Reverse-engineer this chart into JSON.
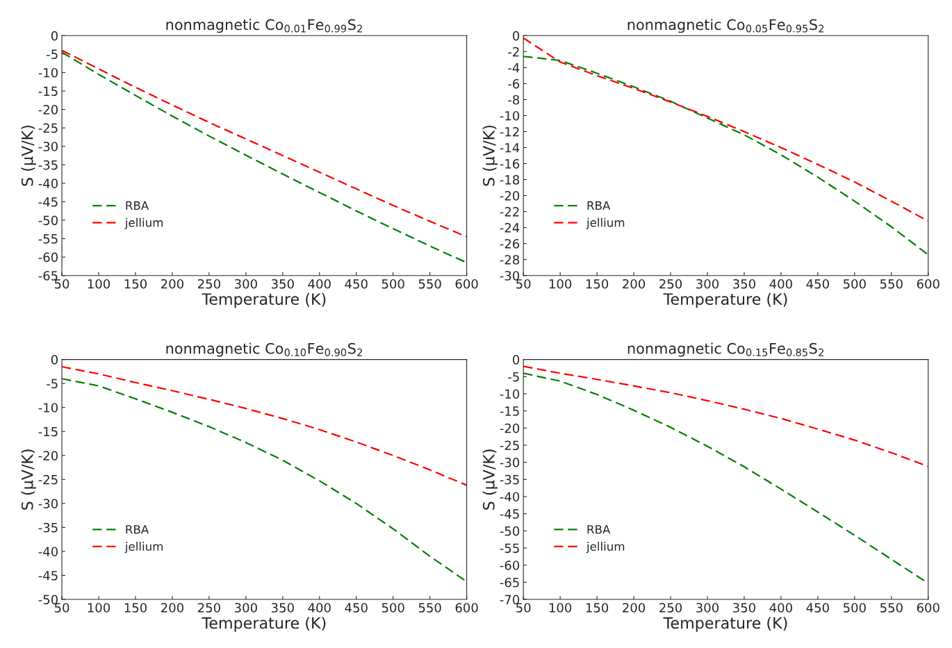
{
  "chart_data": [
    {
      "type": "line",
      "title": "nonmagnetic Co$_{0.01}$Fe$_{0.99}$S$_{2}$",
      "xlabel": "Temperature (K)",
      "ylabel": "S (µV/K)",
      "line_style": "dashed",
      "legend": "bottom left",
      "grid": false,
      "xlim": [
        50,
        600
      ],
      "xticks": [
        50,
        100,
        150,
        200,
        250,
        300,
        350,
        400,
        450,
        500,
        550,
        600
      ],
      "ylim": [
        -65,
        0
      ],
      "yticks": [
        -65,
        -60,
        -55,
        -50,
        -45,
        -40,
        -35,
        -30,
        -25,
        -20,
        -15,
        -10,
        -5,
        0
      ],
      "x": [
        50,
        100,
        150,
        200,
        250,
        300,
        350,
        400,
        450,
        500,
        550,
        600
      ],
      "series": [
        {
          "name": "RBA",
          "color": "#008000",
          "values": [
            -4.5,
            -10.5,
            -16.2,
            -21.8,
            -27.2,
            -32.4,
            -37.5,
            -42.5,
            -47.5,
            -52.3,
            -57,
            -61.5
          ]
        },
        {
          "name": "jellium",
          "color": "#ff0000",
          "values": [
            -4,
            -9,
            -14,
            -18.8,
            -23.5,
            -28,
            -32.5,
            -37,
            -41.5,
            -46,
            -50.3,
            -54.5
          ]
        }
      ]
    },
    {
      "type": "line",
      "title": "nonmagnetic Co$_{0.05}$Fe$_{0.95}$S$_{2}$",
      "xlabel": "Temperature (K)",
      "ylabel": "S (µV/K)",
      "line_style": "dashed",
      "legend": "bottom left",
      "grid": false,
      "xlim": [
        50,
        600
      ],
      "xticks": [
        50,
        100,
        150,
        200,
        250,
        300,
        350,
        400,
        450,
        500,
        550,
        600
      ],
      "ylim": [
        -30,
        0
      ],
      "yticks": [
        -30,
        -28,
        -26,
        -24,
        -22,
        -20,
        -18,
        -16,
        -14,
        -12,
        -10,
        -8,
        -6,
        -4,
        -2,
        0
      ],
      "x": [
        50,
        100,
        150,
        200,
        250,
        300,
        350,
        400,
        450,
        500,
        550,
        600
      ],
      "series": [
        {
          "name": "RBA",
          "color": "#008000",
          "values": [
            -2.6,
            -3.1,
            -4.7,
            -6.4,
            -8.2,
            -10.3,
            -12.4,
            -14.9,
            -17.7,
            -20.7,
            -23.9,
            -27.4
          ]
        },
        {
          "name": "jellium",
          "color": "#ff0000",
          "x": [
            50,
            75,
            100,
            150,
            200,
            250,
            300,
            350,
            400,
            450,
            500,
            550,
            600
          ],
          "values": [
            -0.3,
            -1.8,
            -3.3,
            -5.0,
            -6.6,
            -8.3,
            -10.1,
            -12.0,
            -14.0,
            -16.1,
            -18.3,
            -20.7,
            -23.2
          ]
        }
      ]
    },
    {
      "type": "line",
      "title": "nonmagnetic Co$_{0.10}$Fe$_{0.90}$S$_{2}$",
      "xlabel": "Temperature (K)",
      "ylabel": "S (µV/K)",
      "line_style": "dashed",
      "legend": "bottom left",
      "grid": false,
      "xlim": [
        50,
        600
      ],
      "xticks": [
        50,
        100,
        150,
        200,
        250,
        300,
        350,
        400,
        450,
        500,
        550,
        600
      ],
      "ylim": [
        -50,
        0
      ],
      "yticks": [
        -50,
        -45,
        -40,
        -35,
        -30,
        -25,
        -20,
        -15,
        -10,
        -5,
        0
      ],
      "x": [
        50,
        100,
        150,
        200,
        250,
        300,
        350,
        400,
        450,
        500,
        550,
        600
      ],
      "series": [
        {
          "name": "RBA",
          "color": "#008000",
          "values": [
            -4,
            -5.5,
            -8.2,
            -11,
            -14,
            -17.3,
            -21,
            -25.3,
            -30,
            -35.3,
            -41,
            -46.3
          ]
        },
        {
          "name": "jellium",
          "color": "#ff0000",
          "values": [
            -1.5,
            -3,
            -4.8,
            -6.5,
            -8.3,
            -10.2,
            -12.3,
            -14.6,
            -17.2,
            -20,
            -23,
            -26.2
          ]
        }
      ]
    },
    {
      "type": "line",
      "title": "nonmagnetic Co$_{0.15}$Fe$_{0.85}$S$_{2}$",
      "xlabel": "Temperature (K)",
      "ylabel": "S (µV/K)",
      "line_style": "dashed",
      "legend": "bottom left",
      "grid": false,
      "xlim": [
        50,
        600
      ],
      "xticks": [
        50,
        100,
        150,
        200,
        250,
        300,
        350,
        400,
        450,
        500,
        550,
        600
      ],
      "ylim": [
        -70,
        0
      ],
      "yticks": [
        -70,
        -65,
        -60,
        -55,
        -50,
        -45,
        -40,
        -35,
        -30,
        -25,
        -20,
        -15,
        -10,
        -5,
        0
      ],
      "x": [
        50,
        100,
        150,
        200,
        250,
        300,
        350,
        400,
        450,
        500,
        550,
        600
      ],
      "series": [
        {
          "name": "RBA",
          "color": "#008000",
          "values": [
            -4,
            -6.3,
            -10.2,
            -14.8,
            -19.8,
            -25.3,
            -31.3,
            -37.8,
            -44.5,
            -51.3,
            -58.3,
            -65.3
          ]
        },
        {
          "name": "jellium",
          "color": "#ff0000",
          "values": [
            -2,
            -4,
            -5.8,
            -7.7,
            -9.7,
            -12,
            -14.5,
            -17.2,
            -20.3,
            -23.5,
            -27.2,
            -31.2
          ]
        }
      ]
    }
  ]
}
